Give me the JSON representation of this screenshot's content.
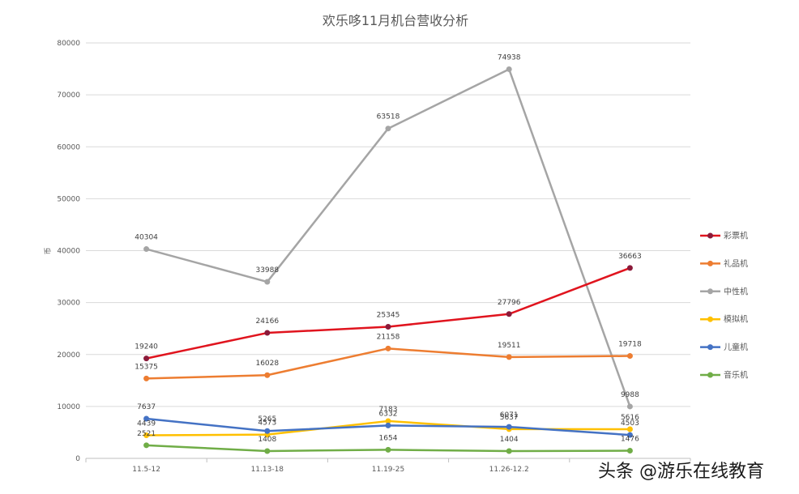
{
  "chart_data": {
    "type": "line",
    "title": "欢乐哆11月机台营收分析",
    "xlabel": "",
    "ylabel": "币",
    "ylim": [
      0,
      80000
    ],
    "yticks": [
      0,
      10000,
      20000,
      30000,
      40000,
      50000,
      60000,
      70000,
      80000
    ],
    "grid": true,
    "legend_position": "right",
    "categories": [
      "11.5-12",
      "11.13-18",
      "11.19-25",
      "11.26-12.2",
      ""
    ],
    "series": [
      {
        "name": "彩票机",
        "color": "#e0141e",
        "marker_color": "#8b1a3a",
        "values": [
          19240,
          24166,
          25345,
          27796,
          36663
        ]
      },
      {
        "name": "礼品机",
        "color": "#ed7d31",
        "marker_color": "#ed7d31",
        "values": [
          15375,
          16028,
          21158,
          19511,
          19718
        ]
      },
      {
        "name": "中性机",
        "color": "#a5a5a5",
        "marker_color": "#a5a5a5",
        "values": [
          40304,
          33988,
          63518,
          74938,
          9988
        ]
      },
      {
        "name": "模拟机",
        "color": "#ffc000",
        "marker_color": "#ffc000",
        "values": [
          4439,
          4573,
          7183,
          5637,
          5616
        ]
      },
      {
        "name": "儿童机",
        "color": "#4472c4",
        "marker_color": "#4472c4",
        "values": [
          7637,
          5265,
          6332,
          6071,
          4503
        ]
      },
      {
        "name": "音乐机",
        "color": "#70ad47",
        "marker_color": "#70ad47",
        "values": [
          2521,
          1408,
          1654,
          1404,
          1476
        ]
      }
    ]
  },
  "watermark": "头条 @游乐在线教育"
}
